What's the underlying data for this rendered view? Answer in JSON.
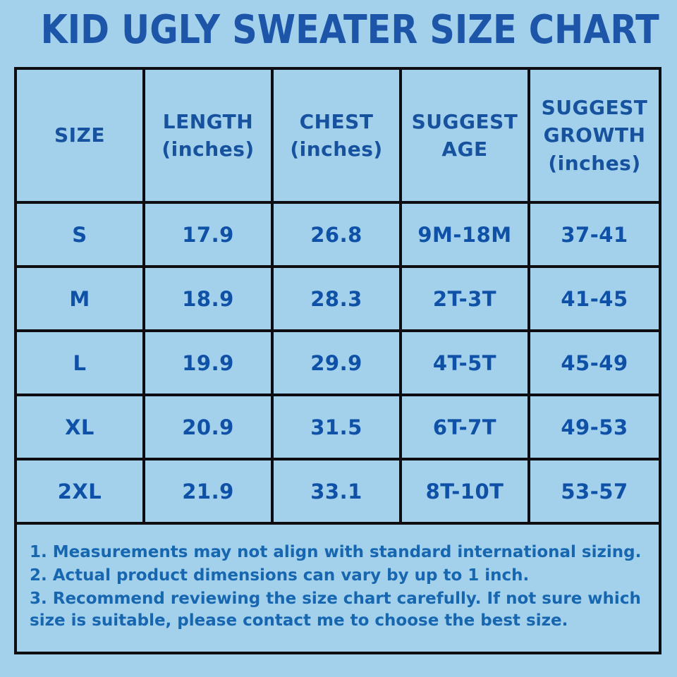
{
  "colors": {
    "background": "#a3d1ec",
    "border": "#0d0d12",
    "title_blue": "#1d55a8",
    "header_blue": "#17529f",
    "cell_blue": "#0f51a6",
    "notes_blue": "#1766b0"
  },
  "title": "KID UGLY SWEATER SIZE CHART",
  "table": {
    "headers": [
      "SIZE",
      "LENGTH\n(inches)",
      "CHEST\n(inches)",
      "SUGGEST\nAGE",
      "SUGGEST\nGROWTH\n(inches)"
    ],
    "rows": [
      [
        "S",
        "17.9",
        "26.8",
        "9M-18M",
        "37-41"
      ],
      [
        "M",
        "18.9",
        "28.3",
        "2T-3T",
        "41-45"
      ],
      [
        "L",
        "19.9",
        "29.9",
        "4T-5T",
        "45-49"
      ],
      [
        "XL",
        "20.9",
        "31.5",
        "6T-7T",
        "49-53"
      ],
      [
        "2XL",
        "21.9",
        "33.1",
        "8T-10T",
        "53-57"
      ]
    ]
  },
  "notes": [
    "1. Measurements may not align with standard international sizing.",
    "2. Actual product dimensions can vary by up to 1 inch.",
    "3. Recommend reviewing the size chart carefully. If not sure which size is suitable, please contact me to choose the best size."
  ]
}
